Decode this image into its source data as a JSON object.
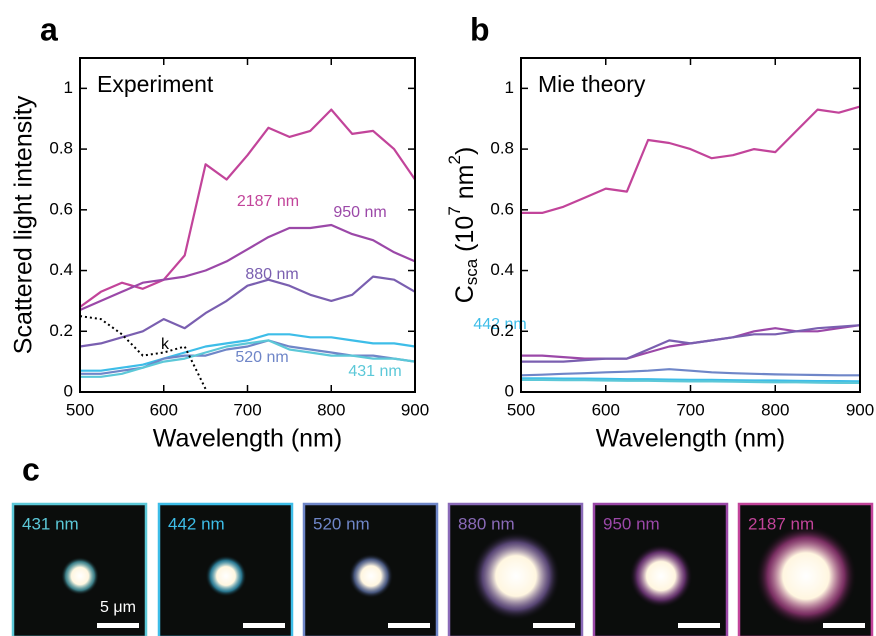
{
  "chart_data": [
    {
      "type": "line",
      "panel": "a",
      "annotation": "Experiment",
      "xlabel": "Wavelength (nm)",
      "ylabel": "Scattered light intensity",
      "xlim": [
        500,
        900
      ],
      "ylim": [
        0,
        1.1
      ],
      "xticks": [
        500,
        600,
        700,
        800,
        900
      ],
      "yticks": [
        0,
        0.2,
        0.4,
        0.6,
        0.8,
        1
      ],
      "x": [
        500,
        525,
        550,
        575,
        600,
        625,
        650,
        675,
        700,
        725,
        750,
        775,
        800,
        825,
        850,
        875,
        900
      ],
      "series": [
        {
          "name": "2187 nm",
          "color": "#c2449a",
          "values": [
            0.28,
            0.33,
            0.36,
            0.34,
            0.37,
            0.45,
            0.75,
            0.7,
            0.78,
            0.87,
            0.84,
            0.86,
            0.93,
            0.85,
            0.86,
            0.8,
            0.7
          ]
        },
        {
          "name": "950 nm",
          "color": "#9b48a8",
          "values": [
            0.27,
            0.3,
            0.33,
            0.36,
            0.37,
            0.38,
            0.4,
            0.43,
            0.47,
            0.51,
            0.54,
            0.54,
            0.55,
            0.52,
            0.5,
            0.46,
            0.43
          ]
        },
        {
          "name": "880 nm",
          "color": "#7a5fb0",
          "values": [
            0.15,
            0.16,
            0.18,
            0.2,
            0.24,
            0.21,
            0.26,
            0.3,
            0.35,
            0.37,
            0.35,
            0.32,
            0.3,
            0.32,
            0.38,
            0.37,
            0.33
          ]
        },
        {
          "name": "442 nm",
          "color": "#3dbde8",
          "values": [
            0.07,
            0.07,
            0.08,
            0.09,
            0.11,
            0.13,
            0.15,
            0.16,
            0.17,
            0.19,
            0.19,
            0.18,
            0.18,
            0.17,
            0.16,
            0.16,
            0.15
          ]
        },
        {
          "name": "520 nm",
          "color": "#6f86c8",
          "values": [
            0.06,
            0.06,
            0.07,
            0.08,
            0.11,
            0.12,
            0.12,
            0.14,
            0.15,
            0.17,
            0.15,
            0.14,
            0.13,
            0.12,
            0.12,
            0.11,
            0.1
          ]
        },
        {
          "name": "431 nm",
          "color": "#5cc8d8",
          "values": [
            0.05,
            0.05,
            0.06,
            0.08,
            0.1,
            0.11,
            0.13,
            0.15,
            0.16,
            0.17,
            0.14,
            0.13,
            0.12,
            0.12,
            0.11,
            0.11,
            0.1
          ]
        },
        {
          "name": "k",
          "color": "#000000",
          "dashed": true,
          "values": [
            0.25,
            0.24,
            0.19,
            0.12,
            0.13,
            0.15,
            0.01,
            null,
            null,
            null,
            null,
            null,
            null,
            null,
            null,
            null,
            null
          ]
        }
      ]
    },
    {
      "type": "line",
      "panel": "b",
      "annotation": "Mie theory",
      "xlabel": "Wavelength (nm)",
      "ylabel": [
        {
          "text": "C"
        },
        {
          "text": "sca",
          "style": "sub"
        },
        {
          "text": " (10"
        },
        {
          "text": "7",
          "style": "sup"
        },
        {
          "text": " nm"
        },
        {
          "text": "2",
          "style": "sup"
        },
        {
          "text": ")"
        }
      ],
      "xlim": [
        500,
        900
      ],
      "ylim": [
        0,
        1.1
      ],
      "xticks": [
        500,
        600,
        700,
        800,
        900
      ],
      "yticks": [
        0,
        0.2,
        0.4,
        0.6,
        0.8,
        1
      ],
      "x": [
        500,
        525,
        550,
        575,
        600,
        625,
        650,
        675,
        700,
        725,
        750,
        775,
        800,
        825,
        850,
        875,
        900
      ],
      "series": [
        {
          "color": "#c2449a",
          "values": [
            0.59,
            0.59,
            0.61,
            0.64,
            0.67,
            0.66,
            0.83,
            0.82,
            0.8,
            0.77,
            0.78,
            0.8,
            0.79,
            0.86,
            0.93,
            0.92,
            0.94
          ]
        },
        {
          "color": "#9b48a8",
          "values": [
            0.12,
            0.12,
            0.115,
            0.11,
            0.11,
            0.11,
            0.13,
            0.15,
            0.16,
            0.17,
            0.18,
            0.2,
            0.21,
            0.2,
            0.2,
            0.21,
            0.22
          ]
        },
        {
          "color": "#7a5fb0",
          "values": [
            0.1,
            0.1,
            0.1,
            0.105,
            0.11,
            0.11,
            0.14,
            0.17,
            0.16,
            0.17,
            0.18,
            0.19,
            0.19,
            0.2,
            0.21,
            0.215,
            0.22
          ]
        },
        {
          "color": "#6f86c8",
          "values": [
            0.055,
            0.057,
            0.06,
            0.062,
            0.065,
            0.067,
            0.07,
            0.075,
            0.07,
            0.065,
            0.062,
            0.06,
            0.058,
            0.057,
            0.056,
            0.055,
            0.055
          ]
        },
        {
          "color": "#3dbde8",
          "values": [
            0.045,
            0.045,
            0.044,
            0.044,
            0.043,
            0.042,
            0.042,
            0.041,
            0.04,
            0.04,
            0.039,
            0.038,
            0.038,
            0.037,
            0.036,
            0.036,
            0.035
          ]
        },
        {
          "color": "#5cc8d8",
          "values": [
            0.04,
            0.04,
            0.039,
            0.039,
            0.038,
            0.037,
            0.037,
            0.036,
            0.035,
            0.035,
            0.034,
            0.033,
            0.032,
            0.032,
            0.031,
            0.03,
            0.03
          ]
        }
      ]
    }
  ],
  "micrographs": {
    "panel": "c",
    "scale_bar": "5 μm",
    "items": [
      {
        "label": "431 nm",
        "color": "#5cc8d8"
      },
      {
        "label": "442 nm",
        "color": "#3dbde8"
      },
      {
        "label": "520 nm",
        "color": "#6f86c8"
      },
      {
        "label": "880 nm",
        "color": "#8a6ab8"
      },
      {
        "label": "950 nm",
        "color": "#9b48a8"
      },
      {
        "label": "2187 nm",
        "color": "#c2449a"
      }
    ]
  }
}
